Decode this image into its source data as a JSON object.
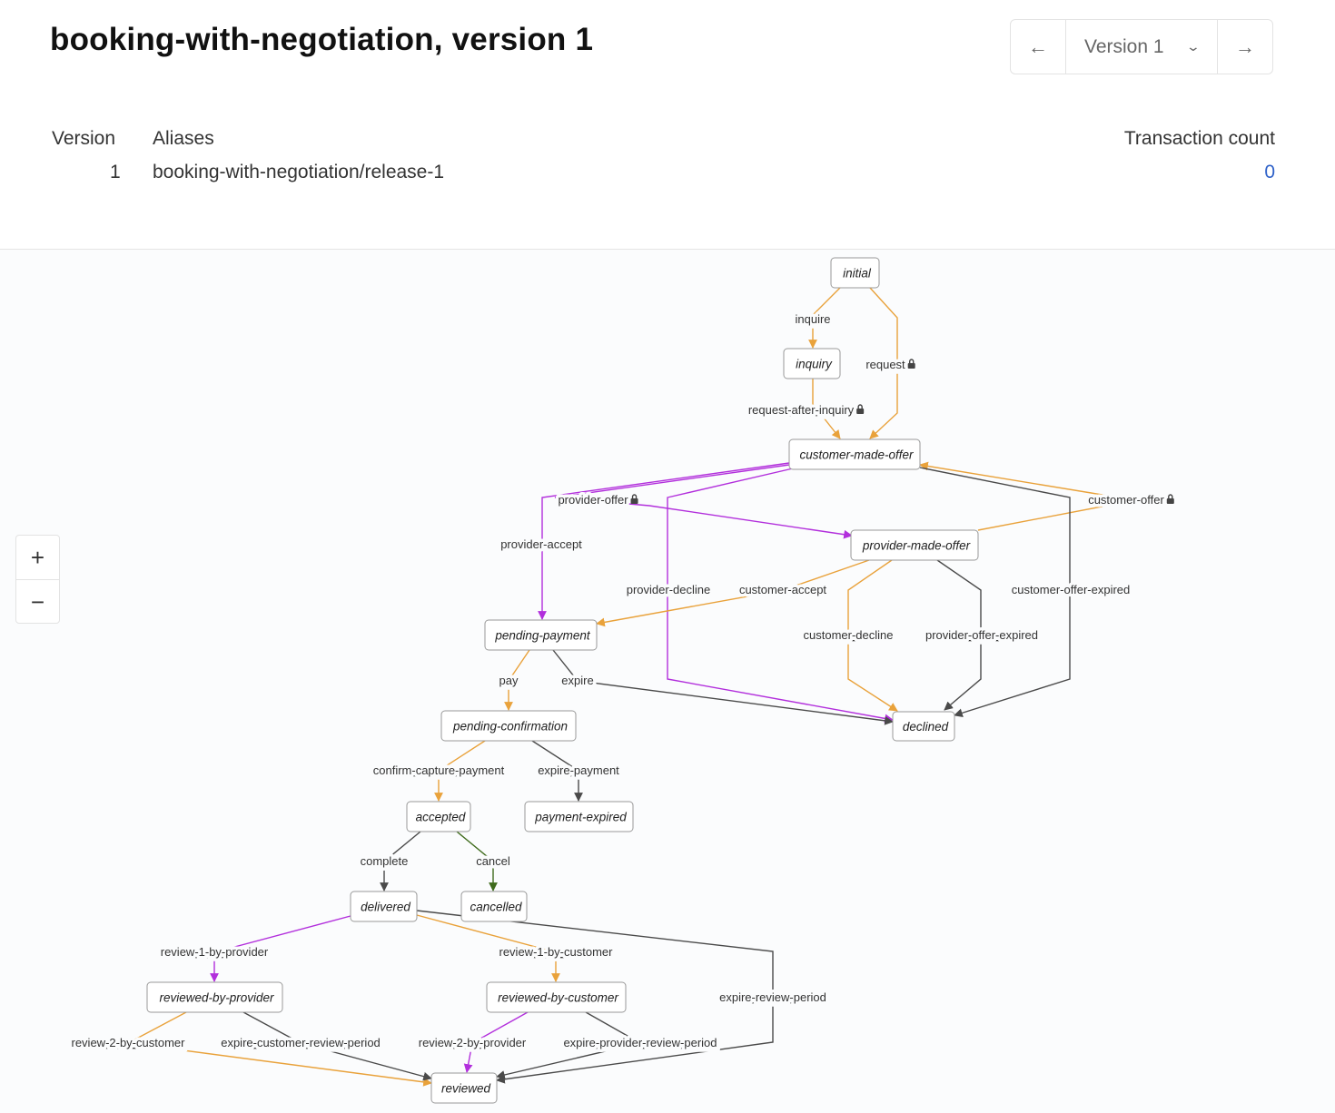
{
  "header": {
    "title": "booking-with-negotiation, version 1",
    "version_nav": {
      "prev_icon": "arrow-left-icon",
      "selected": "Version 1",
      "dropdown_icon": "chevron-down-icon",
      "next_icon": "arrow-right-icon"
    }
  },
  "meta": {
    "columns": {
      "version": "Version",
      "aliases": "Aliases",
      "transaction_count": "Transaction count"
    },
    "row": {
      "version": "1",
      "aliases": "booking-with-negotiation/release-1",
      "transaction_count": "0"
    }
  },
  "zoom_controls": {
    "zoom_in": "+",
    "zoom_out": "−"
  },
  "colors": {
    "orange": "#e9a23b",
    "purple": "#b22fdc",
    "dark": "#4a4a4a",
    "green": "#3f6b1c",
    "accent": "#2f62c9"
  },
  "diagram": {
    "nodes": [
      "initial",
      "inquiry",
      "customer-made-offer",
      "provider-made-offer",
      "pending-payment",
      "pending-confirmation",
      "declined",
      "accepted",
      "payment-expired",
      "delivered",
      "cancelled",
      "reviewed-by-provider",
      "reviewed-by-customer",
      "reviewed"
    ],
    "edges": [
      {
        "label": "inquire",
        "color": "orange",
        "underlined": true,
        "locked": false
      },
      {
        "label": "request",
        "color": "orange",
        "underlined": true,
        "locked": true
      },
      {
        "label": "request-after-inquiry",
        "color": "orange",
        "underlined": true,
        "locked": true
      },
      {
        "label": "provider-offer",
        "color": "purple",
        "underlined": false,
        "locked": true
      },
      {
        "label": "provider-accept",
        "color": "purple",
        "underlined": false,
        "locked": false
      },
      {
        "label": "provider-decline",
        "color": "purple",
        "underlined": false,
        "locked": false
      },
      {
        "label": "customer-offer",
        "color": "orange",
        "underlined": false,
        "locked": true
      },
      {
        "label": "customer-offer-expired",
        "color": "dark",
        "underlined": false,
        "locked": false
      },
      {
        "label": "customer-accept",
        "color": "orange",
        "underlined": false,
        "locked": false
      },
      {
        "label": "customer-decline",
        "color": "orange",
        "underlined": true,
        "locked": false
      },
      {
        "label": "provider-offer-expired",
        "color": "dark",
        "underlined": true,
        "locked": false
      },
      {
        "label": "pay",
        "color": "orange",
        "underlined": true,
        "locked": false
      },
      {
        "label": "expire",
        "color": "dark",
        "underlined": true,
        "locked": false
      },
      {
        "label": "confirm-capture-payment",
        "color": "orange",
        "underlined": true,
        "locked": false
      },
      {
        "label": "expire-payment",
        "color": "dark",
        "underlined": true,
        "locked": false
      },
      {
        "label": "complete",
        "color": "dark",
        "underlined": false,
        "locked": false
      },
      {
        "label": "cancel",
        "color": "green",
        "underlined": false,
        "locked": false
      },
      {
        "label": "review-1-by-provider",
        "color": "purple",
        "underlined": true,
        "locked": false
      },
      {
        "label": "review-1-by-customer",
        "color": "orange",
        "underlined": true,
        "locked": false
      },
      {
        "label": "expire-review-period",
        "color": "dark",
        "underlined": true,
        "locked": false
      },
      {
        "label": "review-2-by-customer",
        "color": "orange",
        "underlined": true,
        "locked": false
      },
      {
        "label": "expire-customer-review-period",
        "color": "dark",
        "underlined": true,
        "locked": false
      },
      {
        "label": "review-2-by-provider",
        "color": "purple",
        "underlined": true,
        "locked": false
      },
      {
        "label": "expire-provider-review-period",
        "color": "dark",
        "underlined": true,
        "locked": false
      }
    ]
  }
}
